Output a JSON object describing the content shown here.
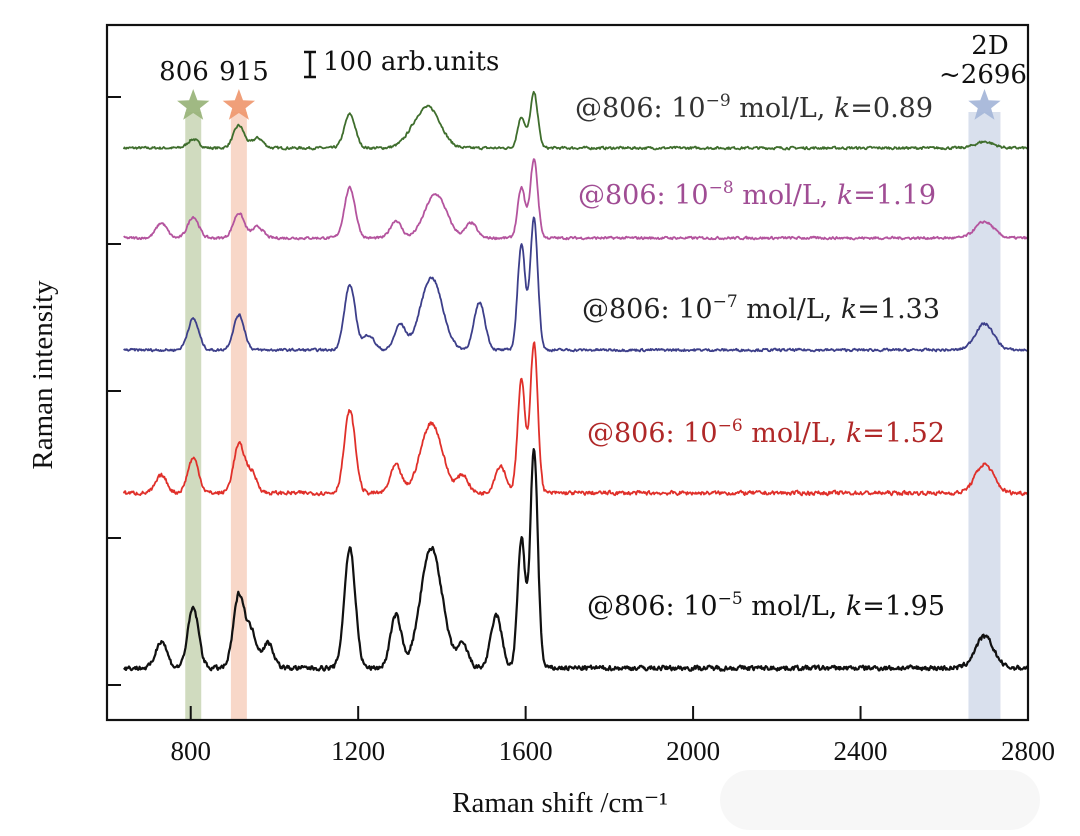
{
  "chart_data": {
    "type": "line",
    "title": "",
    "xlabel": "Raman shift /cm⁻¹",
    "ylabel": "Raman intensity",
    "xlim": [
      600,
      2800
    ],
    "x_ticks": [
      800,
      1200,
      1600,
      2000,
      2400,
      2800
    ],
    "x_tick_labels": [
      "800",
      "1200",
      "1600",
      "2000",
      "2400",
      "2800"
    ],
    "y_ticks_count": 5,
    "y_tick_labels": [],
    "grid": false,
    "scale_bar": {
      "value": 100,
      "label": "100 arb.units"
    },
    "highlight_bands": [
      {
        "label": "806",
        "center": 806,
        "color": "#a9bd8a",
        "star_color": "#9bb57c"
      },
      {
        "label": "915",
        "center": 915,
        "color": "#f2b79a",
        "star_color": "#ef9a72"
      },
      {
        "label": "2D\n~2696",
        "line1": "2D",
        "line2": "~2696",
        "center": 2696,
        "color": "#b9c6de",
        "star_color": "#a6b7d9"
      }
    ],
    "series": [
      {
        "name": "@806: 10^-9 mol/L, k=0.89",
        "label_prefix": "@806: 10",
        "exponent": "−9",
        "label_mid": " mol/L, ",
        "k_var": "k",
        "k_value": "=0.89",
        "color": "#3f6e2d",
        "label_color": "#333333",
        "offset_rank": 5,
        "peaks": [
          [
            806,
            35
          ],
          [
            915,
            90
          ],
          [
            960,
            40
          ],
          [
            1180,
            135
          ],
          [
            1375,
            130
          ],
          [
            1340,
            70
          ],
          [
            1590,
            125
          ],
          [
            1620,
            220
          ],
          [
            2696,
            25
          ]
        ]
      },
      {
        "name": "@806: 10^-8 mol/L, k=1.19",
        "label_prefix": "@806: 10",
        "exponent": "−8",
        "label_mid": " mol/L, ",
        "k_var": "k",
        "k_value": "=1.19",
        "color": "#b4549e",
        "label_color": "#a04d94",
        "offset_rank": 4,
        "peaks": [
          [
            730,
            60
          ],
          [
            806,
            85
          ],
          [
            915,
            100
          ],
          [
            960,
            45
          ],
          [
            1180,
            200
          ],
          [
            1290,
            70
          ],
          [
            1385,
            175
          ],
          [
            1470,
            60
          ],
          [
            1590,
            200
          ],
          [
            1620,
            315
          ],
          [
            2696,
            65
          ]
        ]
      },
      {
        "name": "@806: 10^-7 mol/L, k=1.33",
        "label_prefix": "@806: 10",
        "exponent": "−7",
        "label_mid": " mol/L, ",
        "k_var": "k",
        "k_value": "=1.33",
        "color": "#3d3f8a",
        "label_color": "#222222",
        "offset_rank": 3,
        "peaks": [
          [
            806,
            125
          ],
          [
            915,
            140
          ],
          [
            1180,
            260
          ],
          [
            1225,
            60
          ],
          [
            1300,
            100
          ],
          [
            1375,
            290
          ],
          [
            1490,
            190
          ],
          [
            1590,
            425
          ],
          [
            1620,
            530
          ],
          [
            2696,
            105
          ]
        ]
      },
      {
        "name": "@806: 10^-6 mol/L, k=1.52",
        "label_prefix": "@806: 10",
        "exponent": "−6",
        "label_mid": " mol/L, ",
        "k_var": "k",
        "k_value": "=1.52",
        "color": "#e0302a",
        "label_color": "#b02828",
        "offset_rank": 2,
        "peaks": [
          [
            730,
            70
          ],
          [
            806,
            140
          ],
          [
            915,
            190
          ],
          [
            945,
            80
          ],
          [
            1180,
            330
          ],
          [
            1290,
            110
          ],
          [
            1375,
            280
          ],
          [
            1450,
            70
          ],
          [
            1540,
            110
          ],
          [
            1590,
            450
          ],
          [
            1620,
            600
          ],
          [
            2696,
            115
          ]
        ]
      },
      {
        "name": "@806: 10^-5 mol/L, k=1.95",
        "label_prefix": "@806: 10",
        "exponent": "−5",
        "label_mid": " mol/L, ",
        "k_var": "k",
        "k_value": "=1.95",
        "color": "#111111",
        "label_color": "#111111",
        "offset_rank": 1,
        "peaks": [
          [
            730,
            110
          ],
          [
            806,
            240
          ],
          [
            915,
            290
          ],
          [
            945,
            140
          ],
          [
            985,
            100
          ],
          [
            1180,
            480
          ],
          [
            1290,
            210
          ],
          [
            1375,
            480
          ],
          [
            1450,
            90
          ],
          [
            1530,
            210
          ],
          [
            1590,
            520
          ],
          [
            1620,
            875
          ],
          [
            2696,
            125
          ]
        ]
      }
    ]
  }
}
